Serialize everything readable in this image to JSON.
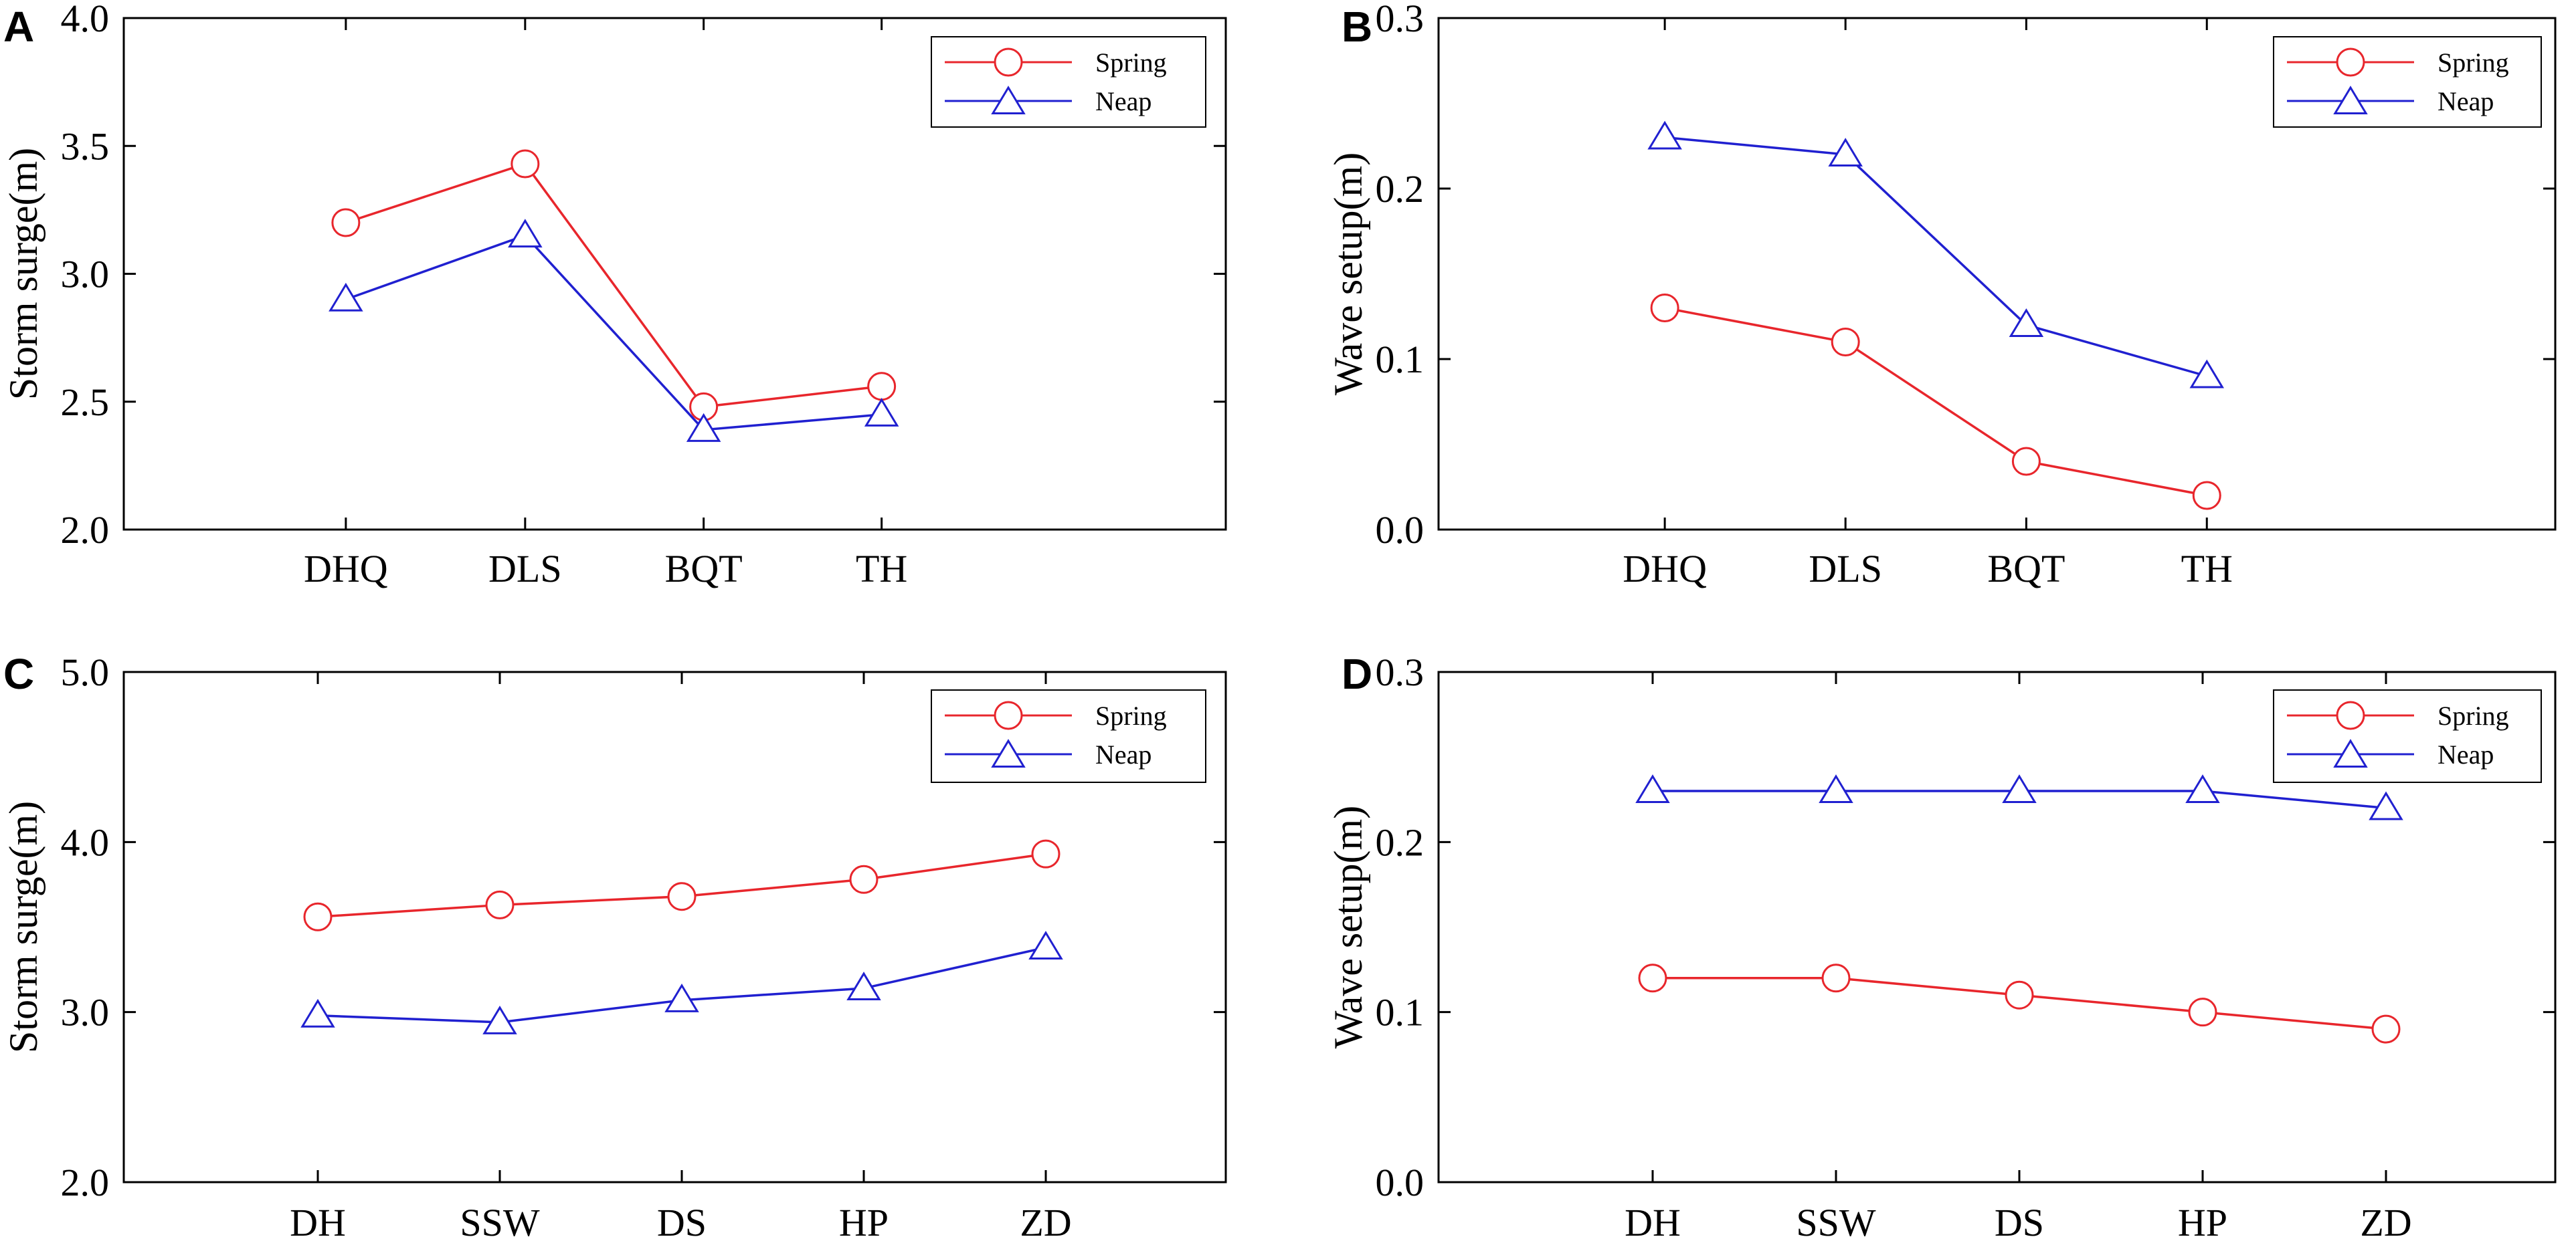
{
  "colors": {
    "spring": "#e8262c",
    "neap": "#2020d0"
  },
  "chart_data": [
    {
      "panel": "A",
      "type": "line",
      "categories": [
        "DHQ",
        "DLS",
        "BQT",
        "TH"
      ],
      "ylabel": "Storm surge(m)",
      "xlabel": "",
      "ylim": [
        2.0,
        4.0
      ],
      "yticks": [
        2.0,
        2.5,
        3.0,
        3.5,
        4.0
      ],
      "ytick_labels": [
        "2.0",
        "2.5",
        "3.0",
        "3.5",
        "4.0"
      ],
      "legend": "top-right",
      "series": [
        {
          "name": "Spring",
          "marker": "circle",
          "values": [
            3.2,
            3.43,
            2.48,
            2.56
          ]
        },
        {
          "name": "Neap",
          "marker": "triangle",
          "values": [
            2.9,
            3.15,
            2.39,
            2.45
          ]
        }
      ]
    },
    {
      "panel": "B",
      "type": "line",
      "categories": [
        "DHQ",
        "DLS",
        "BQT",
        "TH"
      ],
      "ylabel": "Wave setup(m)",
      "xlabel": "",
      "ylim": [
        0.0,
        0.3
      ],
      "yticks": [
        0.0,
        0.1,
        0.2,
        0.3
      ],
      "ytick_labels": [
        "0.0",
        "0.1",
        "0.2",
        "0.3"
      ],
      "legend": "top-right",
      "series": [
        {
          "name": "Spring",
          "marker": "circle",
          "values": [
            0.13,
            0.11,
            0.04,
            0.02
          ]
        },
        {
          "name": "Neap",
          "marker": "triangle",
          "values": [
            0.23,
            0.22,
            0.12,
            0.09
          ]
        }
      ]
    },
    {
      "panel": "C",
      "type": "line",
      "categories": [
        "DH",
        "SSW",
        "DS",
        "HP",
        "ZD"
      ],
      "ylabel": "Storm surge(m)",
      "xlabel": "",
      "ylim": [
        2.0,
        5.0
      ],
      "yticks": [
        2.0,
        3.0,
        4.0,
        5.0
      ],
      "ytick_labels": [
        "2.0",
        "3.0",
        "4.0",
        "5.0"
      ],
      "legend": "top-right",
      "series": [
        {
          "name": "Spring",
          "marker": "circle",
          "values": [
            3.56,
            3.63,
            3.68,
            3.78,
            3.93
          ]
        },
        {
          "name": "Neap",
          "marker": "triangle",
          "values": [
            2.98,
            2.94,
            3.07,
            3.14,
            3.38
          ]
        }
      ]
    },
    {
      "panel": "D",
      "type": "line",
      "categories": [
        "DH",
        "SSW",
        "DS",
        "HP",
        "ZD"
      ],
      "ylabel": "Wave setup(m)",
      "xlabel": "",
      "ylim": [
        0.0,
        0.3
      ],
      "yticks": [
        0.0,
        0.1,
        0.2,
        0.3
      ],
      "ytick_labels": [
        "0.0",
        "0.1",
        "0.2",
        "0.3"
      ],
      "legend": "top-right",
      "series": [
        {
          "name": "Spring",
          "marker": "circle",
          "values": [
            0.12,
            0.12,
            0.11,
            0.1,
            0.09
          ]
        },
        {
          "name": "Neap",
          "marker": "triangle",
          "values": [
            0.23,
            0.23,
            0.23,
            0.23,
            0.22
          ]
        }
      ]
    }
  ]
}
